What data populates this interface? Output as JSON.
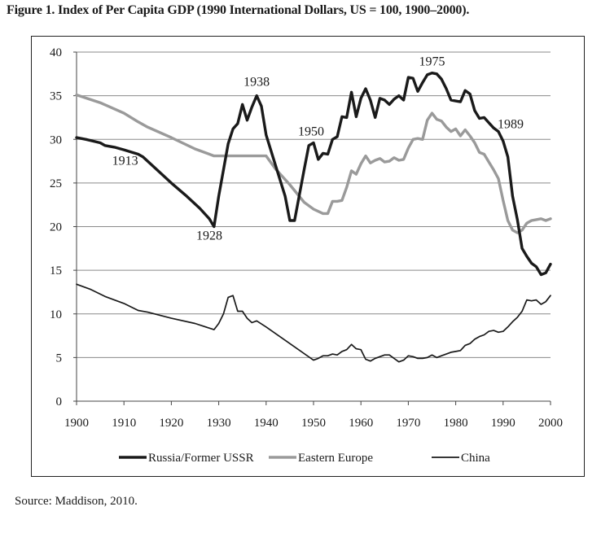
{
  "page": {
    "title": "Figure 1.  Index of Per Capita GDP (1990 International Dollars, US = 100, 1900–2000).",
    "source": "Source: Maddison, 2010."
  },
  "chart_data": {
    "type": "line",
    "title": "Index of Per Capita GDP (1990 International Dollars, US = 100, 1900–2000)",
    "xlabel": "",
    "ylabel": "",
    "xlim": [
      1900,
      2000
    ],
    "ylim": [
      0,
      40
    ],
    "x_ticks": [
      1900,
      1910,
      1920,
      1930,
      1940,
      1950,
      1960,
      1970,
      1980,
      1990,
      2000
    ],
    "y_ticks": [
      0,
      5,
      10,
      15,
      20,
      25,
      30,
      35,
      40
    ],
    "grid": "horizontal",
    "legend_position": "bottom",
    "annotations": [
      {
        "text": "1913",
        "x": 1913,
        "y": 28.0
      },
      {
        "text": "1928",
        "x": 1928,
        "y": 20.0
      },
      {
        "text": "1938",
        "x": 1938,
        "y": 35.0
      },
      {
        "text": "1950",
        "x": 1950,
        "y": 29.5
      },
      {
        "text": "1975",
        "x": 1975,
        "y": 37.6
      },
      {
        "text": "1989",
        "x": 1989,
        "y": 30.9
      }
    ],
    "series": [
      {
        "name": "Russia/Former USSR",
        "color": "#1a1a1a",
        "width": 3.4,
        "points": [
          [
            1900,
            30.2
          ],
          [
            1902,
            30.0
          ],
          [
            1905,
            29.6
          ],
          [
            1906,
            29.3
          ],
          [
            1908,
            29.1
          ],
          [
            1910,
            28.8
          ],
          [
            1913,
            28.3
          ],
          [
            1914,
            28.0
          ],
          [
            1917,
            26.5
          ],
          [
            1920,
            25.0
          ],
          [
            1923,
            23.6
          ],
          [
            1926,
            22.1
          ],
          [
            1928,
            20.9
          ],
          [
            1929,
            20.0
          ],
          [
            1930,
            23.5
          ],
          [
            1931,
            26.5
          ],
          [
            1932,
            29.5
          ],
          [
            1933,
            31.2
          ],
          [
            1934,
            31.8
          ],
          [
            1935,
            34.0
          ],
          [
            1936,
            32.2
          ],
          [
            1937,
            33.7
          ],
          [
            1938,
            35.0
          ],
          [
            1939,
            33.8
          ],
          [
            1940,
            30.5
          ],
          [
            1942,
            27.0
          ],
          [
            1944,
            23.5
          ],
          [
            1945,
            20.7
          ],
          [
            1946,
            20.7
          ],
          [
            1948,
            26.5
          ],
          [
            1949,
            29.3
          ],
          [
            1950,
            29.6
          ],
          [
            1951,
            27.7
          ],
          [
            1952,
            28.4
          ],
          [
            1953,
            28.3
          ],
          [
            1954,
            30.0
          ],
          [
            1955,
            30.3
          ],
          [
            1956,
            32.6
          ],
          [
            1957,
            32.5
          ],
          [
            1958,
            35.4
          ],
          [
            1959,
            32.6
          ],
          [
            1960,
            34.7
          ],
          [
            1961,
            35.8
          ],
          [
            1962,
            34.5
          ],
          [
            1963,
            32.5
          ],
          [
            1964,
            34.7
          ],
          [
            1965,
            34.5
          ],
          [
            1966,
            34.0
          ],
          [
            1967,
            34.6
          ],
          [
            1968,
            35.0
          ],
          [
            1969,
            34.5
          ],
          [
            1970,
            37.1
          ],
          [
            1971,
            37.0
          ],
          [
            1972,
            35.5
          ],
          [
            1973,
            36.5
          ],
          [
            1974,
            37.4
          ],
          [
            1975,
            37.6
          ],
          [
            1976,
            37.5
          ],
          [
            1977,
            36.9
          ],
          [
            1978,
            35.8
          ],
          [
            1979,
            34.5
          ],
          [
            1980,
            34.4
          ],
          [
            1981,
            34.3
          ],
          [
            1982,
            35.6
          ],
          [
            1983,
            35.2
          ],
          [
            1984,
            33.3
          ],
          [
            1985,
            32.4
          ],
          [
            1986,
            32.5
          ],
          [
            1987,
            31.9
          ],
          [
            1988,
            31.3
          ],
          [
            1989,
            30.9
          ],
          [
            1990,
            29.8
          ],
          [
            1991,
            28.0
          ],
          [
            1992,
            23.5
          ],
          [
            1993,
            20.8
          ],
          [
            1994,
            17.5
          ],
          [
            1995,
            16.6
          ],
          [
            1996,
            15.8
          ],
          [
            1997,
            15.4
          ],
          [
            1998,
            14.5
          ],
          [
            1999,
            14.7
          ],
          [
            2000,
            15.7
          ]
        ]
      },
      {
        "name": "Eastern Europe",
        "color": "#9a9a9a",
        "width": 3.4,
        "points": [
          [
            1900,
            35.1
          ],
          [
            1905,
            34.2
          ],
          [
            1910,
            33.0
          ],
          [
            1913,
            32.0
          ],
          [
            1915,
            31.4
          ],
          [
            1920,
            30.2
          ],
          [
            1925,
            28.9
          ],
          [
            1929,
            28.1
          ],
          [
            1930,
            28.1
          ],
          [
            1935,
            28.1
          ],
          [
            1938,
            28.1
          ],
          [
            1940,
            28.1
          ],
          [
            1942,
            26.6
          ],
          [
            1945,
            24.8
          ],
          [
            1948,
            22.8
          ],
          [
            1950,
            22.0
          ],
          [
            1952,
            21.5
          ],
          [
            1953,
            21.5
          ],
          [
            1954,
            22.9
          ],
          [
            1955,
            22.9
          ],
          [
            1956,
            23.0
          ],
          [
            1957,
            24.5
          ],
          [
            1958,
            26.4
          ],
          [
            1959,
            26.0
          ],
          [
            1960,
            27.2
          ],
          [
            1961,
            28.1
          ],
          [
            1962,
            27.3
          ],
          [
            1963,
            27.6
          ],
          [
            1964,
            27.8
          ],
          [
            1965,
            27.4
          ],
          [
            1966,
            27.5
          ],
          [
            1967,
            27.9
          ],
          [
            1968,
            27.6
          ],
          [
            1969,
            27.7
          ],
          [
            1970,
            29.0
          ],
          [
            1971,
            30.0
          ],
          [
            1972,
            30.1
          ],
          [
            1973,
            30.0
          ],
          [
            1974,
            32.2
          ],
          [
            1975,
            33.0
          ],
          [
            1976,
            32.3
          ],
          [
            1977,
            32.1
          ],
          [
            1978,
            31.4
          ],
          [
            1979,
            30.9
          ],
          [
            1980,
            31.2
          ],
          [
            1981,
            30.4
          ],
          [
            1982,
            31.1
          ],
          [
            1983,
            30.4
          ],
          [
            1984,
            29.6
          ],
          [
            1985,
            28.5
          ],
          [
            1986,
            28.3
          ],
          [
            1987,
            27.4
          ],
          [
            1988,
            26.5
          ],
          [
            1989,
            25.5
          ],
          [
            1990,
            23.0
          ],
          [
            1991,
            20.7
          ],
          [
            1992,
            19.6
          ],
          [
            1993,
            19.3
          ],
          [
            1994,
            19.6
          ],
          [
            1995,
            20.4
          ],
          [
            1996,
            20.7
          ],
          [
            1997,
            20.8
          ],
          [
            1998,
            20.9
          ],
          [
            1999,
            20.7
          ],
          [
            2000,
            20.9
          ]
        ]
      },
      {
        "name": "China",
        "color": "#1a1a1a",
        "width": 1.7,
        "points": [
          [
            1900,
            13.4
          ],
          [
            1903,
            12.8
          ],
          [
            1906,
            12.0
          ],
          [
            1910,
            11.2
          ],
          [
            1913,
            10.4
          ],
          [
            1915,
            10.2
          ],
          [
            1920,
            9.5
          ],
          [
            1925,
            8.9
          ],
          [
            1929,
            8.2
          ],
          [
            1930,
            8.9
          ],
          [
            1931,
            10.0
          ],
          [
            1932,
            11.9
          ],
          [
            1933,
            12.1
          ],
          [
            1934,
            10.3
          ],
          [
            1935,
            10.3
          ],
          [
            1936,
            9.5
          ],
          [
            1937,
            9.0
          ],
          [
            1938,
            9.2
          ],
          [
            1940,
            8.5
          ],
          [
            1945,
            6.6
          ],
          [
            1950,
            4.7
          ],
          [
            1951,
            4.9
          ],
          [
            1952,
            5.2
          ],
          [
            1953,
            5.2
          ],
          [
            1954,
            5.4
          ],
          [
            1955,
            5.3
          ],
          [
            1956,
            5.7
          ],
          [
            1957,
            5.9
          ],
          [
            1958,
            6.5
          ],
          [
            1959,
            6.0
          ],
          [
            1960,
            5.9
          ],
          [
            1961,
            4.8
          ],
          [
            1962,
            4.6
          ],
          [
            1963,
            4.9
          ],
          [
            1964,
            5.1
          ],
          [
            1965,
            5.3
          ],
          [
            1966,
            5.3
          ],
          [
            1967,
            4.9
          ],
          [
            1968,
            4.5
          ],
          [
            1969,
            4.7
          ],
          [
            1970,
            5.2
          ],
          [
            1971,
            5.1
          ],
          [
            1972,
            4.9
          ],
          [
            1973,
            4.9
          ],
          [
            1974,
            5.0
          ],
          [
            1975,
            5.3
          ],
          [
            1976,
            5.0
          ],
          [
            1977,
            5.2
          ],
          [
            1978,
            5.4
          ],
          [
            1979,
            5.6
          ],
          [
            1980,
            5.7
          ],
          [
            1981,
            5.8
          ],
          [
            1982,
            6.4
          ],
          [
            1983,
            6.6
          ],
          [
            1984,
            7.1
          ],
          [
            1985,
            7.4
          ],
          [
            1986,
            7.6
          ],
          [
            1987,
            8.0
          ],
          [
            1988,
            8.1
          ],
          [
            1989,
            7.9
          ],
          [
            1990,
            8.0
          ],
          [
            1991,
            8.5
          ],
          [
            1992,
            9.1
          ],
          [
            1993,
            9.6
          ],
          [
            1994,
            10.3
          ],
          [
            1995,
            11.6
          ],
          [
            1996,
            11.5
          ],
          [
            1997,
            11.6
          ],
          [
            1998,
            11.1
          ],
          [
            1999,
            11.4
          ],
          [
            2000,
            12.1
          ]
        ]
      }
    ]
  }
}
